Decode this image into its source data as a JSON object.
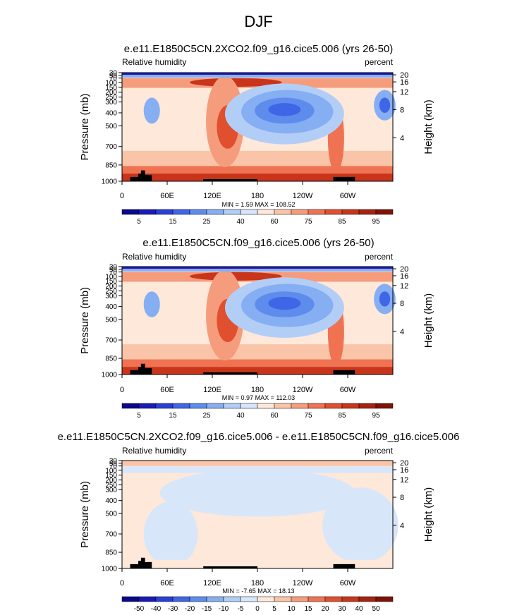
{
  "page_title": "DJF",
  "chart_data": [
    {
      "type": "heatmap",
      "title": "e.e11.E1850C5CN.2XCO2.f09_g16.cice5.006 (yrs 26-50)",
      "left_label": "Relative humidity",
      "right_label": "percent",
      "ylabel": "Pressure (mb)",
      "ylabel_right": "Height (km)",
      "x_ticks": [
        "0",
        "60E",
        "120E",
        "180",
        "120W",
        "60W"
      ],
      "y_ticks": [
        "30",
        "50",
        "70",
        "100",
        "150",
        "200",
        "250",
        "300",
        "400",
        "500",
        "700",
        "850",
        "1000"
      ],
      "y_right_ticks": [
        "20",
        "16",
        "12",
        "8",
        "4"
      ],
      "stats": "MIN =   1.59  MAX = 108.52",
      "colorbar": {
        "labels": [
          "5",
          "15",
          "25",
          "40",
          "60",
          "75",
          "85",
          "95"
        ],
        "colors": [
          "#08088a",
          "#1a1ab8",
          "#2a3fd6",
          "#3e66e6",
          "#5e8ced",
          "#86aef3",
          "#b2cef7",
          "#d8e6fa",
          "#fde8da",
          "#f9c4a8",
          "#f59c7c",
          "#ef7352",
          "#e0502e",
          "#c8351a",
          "#a4230f",
          "#7f1208"
        ]
      }
    },
    {
      "type": "heatmap",
      "title": "e.e11.E1850C5CN.f09_g16.cice5.006 (yrs 26-50)",
      "left_label": "Relative humidity",
      "right_label": "percent",
      "ylabel": "Pressure (mb)",
      "ylabel_right": "Height (km)",
      "x_ticks": [
        "0",
        "60E",
        "120E",
        "180",
        "120W",
        "60W"
      ],
      "y_ticks": [
        "30",
        "50",
        "70",
        "100",
        "150",
        "200",
        "250",
        "300",
        "400",
        "500",
        "700",
        "850",
        "1000"
      ],
      "y_right_ticks": [
        "20",
        "16",
        "12",
        "8",
        "4"
      ],
      "stats": "MIN =   0.97  MAX = 112.03",
      "colorbar": {
        "labels": [
          "5",
          "15",
          "25",
          "40",
          "60",
          "75",
          "85",
          "95"
        ],
        "colors": [
          "#08088a",
          "#1a1ab8",
          "#2a3fd6",
          "#3e66e6",
          "#5e8ced",
          "#86aef3",
          "#b2cef7",
          "#d8e6fa",
          "#fde8da",
          "#f9c4a8",
          "#f59c7c",
          "#ef7352",
          "#e0502e",
          "#c8351a",
          "#a4230f",
          "#7f1208"
        ]
      }
    },
    {
      "type": "heatmap",
      "title": "e.e11.E1850C5CN.2XCO2.f09_g16.cice5.006 - e.e11.E1850C5CN.f09_g16.cice5.006",
      "left_label": "Relative humidity",
      "right_label": "percent",
      "ylabel": "Pressure (mb)",
      "ylabel_right": "Height (km)",
      "x_ticks": [
        "0",
        "60E",
        "120E",
        "180",
        "120W",
        "60W"
      ],
      "y_ticks": [
        "30",
        "50",
        "70",
        "100",
        "150",
        "200",
        "250",
        "300",
        "400",
        "500",
        "700",
        "850",
        "1000"
      ],
      "y_right_ticks": [
        "20",
        "16",
        "12",
        "8",
        "4"
      ],
      "stats": "MIN =  -7.65  MAX =  18.13",
      "colorbar": {
        "labels": [
          "-50",
          "-40",
          "-30",
          "-20",
          "-15",
          "-10",
          "-5",
          "0",
          "5",
          "10",
          "15",
          "20",
          "30",
          "40",
          "50"
        ],
        "colors": [
          "#08088a",
          "#1a1ab8",
          "#2a3fd6",
          "#3e66e6",
          "#5e8ced",
          "#86aef3",
          "#b2cef7",
          "#d8e6fa",
          "#fde8da",
          "#f9c4a8",
          "#f59c7c",
          "#ef7352",
          "#e0502e",
          "#c8351a",
          "#a4230f",
          "#7f1208"
        ]
      }
    }
  ]
}
